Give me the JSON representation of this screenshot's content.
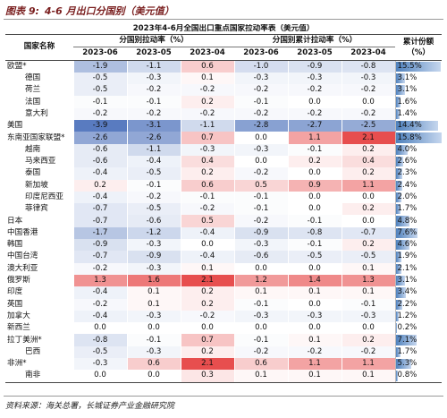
{
  "header": {
    "label": "图表 9:",
    "title": "4-6 月出口分国别（美元值）"
  },
  "table": {
    "title": "2023年4-6月全国出口重点国家拉动率表（美元值）",
    "columns": {
      "name": "国家名称",
      "group1": "分国别拉动率（%）",
      "group2": "分国别累计拉动率（%）",
      "share": "累计份额（%）",
      "months": [
        "2023-06",
        "2023-05",
        "2023-04"
      ]
    },
    "rows": [
      {
        "name": "欧盟*",
        "values": [
          "-1.9",
          "-1.1",
          "0.6",
          "-1.0",
          "-0.9",
          "-0.8"
        ],
        "share": "15.5%",
        "sub": [
          {
            "name": "德国",
            "values": [
              "-0.5",
              "-0.3",
              "0.1",
              "-0.3",
              "-0.3",
              "-0.3"
            ],
            "share": "3.1%"
          },
          {
            "name": "荷兰",
            "values": [
              "-0.5",
              "-0.2",
              "-0.2",
              "-0.2",
              "-0.2",
              "-0.2"
            ],
            "share": "3.1%"
          },
          {
            "name": "法国",
            "values": [
              "-0.1",
              "-0.1",
              "0.2",
              "-0.1",
              "0.0",
              "0.0"
            ],
            "share": "1.6%"
          },
          {
            "name": "意大利",
            "values": [
              "-0.2",
              "-0.2",
              "-0.2",
              "-0.2",
              "-0.2",
              "-0.2"
            ],
            "share": "1.4%"
          }
        ]
      },
      {
        "name": "美国",
        "values": [
          "-3.9",
          "-3.1",
          "-1.1",
          "-2.8",
          "-2.7",
          "-2.5"
        ],
        "share": "14.4%"
      },
      {
        "name": "东南亚国家联盟*",
        "values": [
          "-2.6",
          "-2.6",
          "0.7",
          "0.0",
          "1.1",
          "2.1"
        ],
        "share": "15.8%",
        "sub": [
          {
            "name": "越南",
            "values": [
              "-0.6",
              "-1.1",
              "-0.3",
              "-0.3",
              "-0.1",
              "0.2"
            ],
            "share": "4.0%"
          },
          {
            "name": "马来西亚",
            "values": [
              "-0.6",
              "-0.4",
              "0.4",
              "0.0",
              "0.2",
              "0.4"
            ],
            "share": "2.6%"
          },
          {
            "name": "泰国",
            "values": [
              "-0.4",
              "-0.5",
              "0.2",
              "-0.2",
              "0.0",
              "0.2"
            ],
            "share": "2.3%"
          },
          {
            "name": "新加坡",
            "values": [
              "0.2",
              "-0.1",
              "0.6",
              "0.5",
              "0.9",
              "1.1"
            ],
            "share": "2.4%"
          },
          {
            "name": "印度尼西亚",
            "values": [
              "-0.4",
              "-0.2",
              "-0.1",
              "-0.1",
              "0.0",
              "0.0"
            ],
            "share": "2.0%"
          },
          {
            "name": "菲律宾",
            "values": [
              "-0.7",
              "-0.5",
              "-0.2",
              "-0.1",
              "0.0",
              "0.2"
            ],
            "share": "1.7%"
          }
        ]
      },
      {
        "name": "日本",
        "values": [
          "-0.7",
          "-0.6",
          "0.5",
          "-0.2",
          "-0.1",
          "0.0"
        ],
        "share": "4.8%"
      },
      {
        "name": "中国香港",
        "values": [
          "-1.7",
          "-1.2",
          "-0.4",
          "-0.9",
          "-0.8",
          "-0.7"
        ],
        "share": "7.6%"
      },
      {
        "name": "韩国",
        "values": [
          "-0.9",
          "-0.3",
          "0.0",
          "-0.3",
          "-0.1",
          "0.2"
        ],
        "share": "4.6%"
      },
      {
        "name": "中国台湾",
        "values": [
          "-0.7",
          "-0.9",
          "-0.4",
          "-0.6",
          "-0.5",
          "-0.5"
        ],
        "share": "1.9%"
      },
      {
        "name": "澳大利亚",
        "values": [
          "-0.2",
          "-0.3",
          "0.1",
          "0.0",
          "0.0",
          "0.1"
        ],
        "share": "2.1%"
      },
      {
        "name": "俄罗斯",
        "values": [
          "1.3",
          "1.6",
          "2.1",
          "1.2",
          "1.4",
          "1.3"
        ],
        "share": "3.1%"
      },
      {
        "name": "印度",
        "values": [
          "-0.4",
          "0.1",
          "0.2",
          "0.1",
          "0.1",
          "0.1"
        ],
        "share": "3.4%"
      },
      {
        "name": "英国",
        "values": [
          "-0.2",
          "0.1",
          "0.2",
          "-0.1",
          "0.0",
          "-0.1"
        ],
        "share": "2.2%"
      },
      {
        "name": "加拿大",
        "values": [
          "-0.4",
          "-0.3",
          "-0.2",
          "-0.3",
          "-0.3",
          "-0.3"
        ],
        "share": "1.2%"
      },
      {
        "name": "新西兰",
        "values": [
          "0.0",
          "0.0",
          "0.0",
          "0.0",
          "0.0",
          "0.0"
        ],
        "share": "0.2%"
      },
      {
        "name": "拉丁美洲*",
        "values": [
          "-0.8",
          "-0.1",
          "0.7",
          "-0.1",
          "0.1",
          "0.2"
        ],
        "share": "7.1%",
        "sub": [
          {
            "name": "巴西",
            "values": [
              "-0.5",
              "-0.3",
              "0.2",
              "-0.2",
              "-0.2",
              "-0.2"
            ],
            "share": "1.7%"
          }
        ]
      },
      {
        "name": "非洲*",
        "values": [
          "-0.3",
          "0.6",
          "2.1",
          "0.6",
          "1.1",
          "1.1"
        ],
        "share": "5.3%",
        "sub": [
          {
            "name": "南非",
            "values": [
              "0.0",
              "0.0",
              "0.3",
              "0.1",
              "0.1",
              "0.1"
            ],
            "share": "0.8%"
          }
        ]
      }
    ]
  },
  "footer": "资料来源：海关总署，长城证券产业金融研究院"
}
